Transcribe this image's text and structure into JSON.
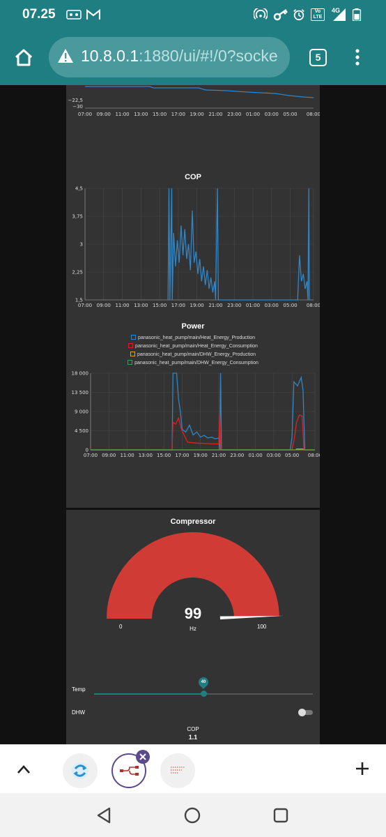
{
  "status": {
    "time": "07.25",
    "network": "4G",
    "lte_badge": "Vo LTE"
  },
  "browser": {
    "url_host": "10.8.0.1",
    "url_rest": ":1880/ui/#!/0?socke",
    "tab_count": "5"
  },
  "top_chart": {
    "y_ticks": [
      "−22,5",
      "−30"
    ],
    "x_ticks": [
      "07:00",
      "09:00",
      "11:00",
      "13:00",
      "15:00",
      "17:00",
      "19:00",
      "21:00",
      "23:00",
      "01:00",
      "03:00",
      "05:00",
      "08:00"
    ]
  },
  "chart_data": [
    {
      "type": "line",
      "title": "COP",
      "x_ticks": [
        "07:00",
        "09:00",
        "11:00",
        "13:00",
        "15:00",
        "17:00",
        "19:00",
        "21:00",
        "23:00",
        "01:00",
        "03:00",
        "05:00",
        "08:00"
      ],
      "y_ticks": [
        "4,5",
        "3,75",
        "3",
        "2,25",
        "1,5"
      ],
      "ylim": [
        1.5,
        4.5
      ],
      "series": [
        {
          "color": "#2f86c8",
          "points": [
            [
              8.9,
              1.5
            ],
            [
              9.0,
              4.5
            ],
            [
              9.1,
              1.5
            ],
            [
              9.3,
              4.5
            ],
            [
              9.35,
              1.5
            ],
            [
              9.5,
              3.3
            ],
            [
              9.7,
              2.4
            ],
            [
              9.9,
              3.1
            ],
            [
              10.1,
              2.5
            ],
            [
              10.3,
              3.5
            ],
            [
              10.5,
              2.7
            ],
            [
              10.7,
              3.4
            ],
            [
              10.9,
              2.6
            ],
            [
              11.1,
              3.0
            ],
            [
              11.3,
              2.3
            ],
            [
              11.5,
              3.9
            ],
            [
              11.7,
              2.5
            ],
            [
              11.9,
              2.8
            ],
            [
              12.1,
              2.2
            ],
            [
              12.3,
              2.6
            ],
            [
              12.5,
              2.0
            ],
            [
              12.7,
              2.4
            ],
            [
              12.9,
              1.9
            ],
            [
              13.1,
              2.3
            ],
            [
              13.3,
              1.8
            ],
            [
              13.5,
              2.1
            ],
            [
              13.7,
              1.7
            ],
            [
              13.9,
              2.0
            ],
            [
              14.0,
              1.5
            ],
            [
              14.2,
              4.5
            ],
            [
              14.3,
              1.5
            ],
            [
              22.8,
              1.5
            ],
            [
              23.0,
              2.7
            ],
            [
              23.2,
              2.0
            ],
            [
              23.4,
              2.2
            ],
            [
              23.6,
              1.8
            ],
            [
              23.8,
              2.0
            ],
            [
              23.9,
              1.5
            ],
            [
              24.0,
              4.5
            ],
            [
              24.05,
              1.5
            ]
          ]
        }
      ]
    },
    {
      "type": "line",
      "title": "Power",
      "x_ticks": [
        "07:00",
        "09:00",
        "11:00",
        "13:00",
        "15:00",
        "17:00",
        "19:00",
        "21:00",
        "23:00",
        "01:00",
        "03:00",
        "05:00",
        "08:00"
      ],
      "y_ticks": [
        "18 000",
        "13 500",
        "9 000",
        "4 500",
        "0"
      ],
      "ylim": [
        0,
        18000
      ],
      "legend": [
        "panasonic_heat_pump/main/Heat_Energy_Production",
        "panasonic_heat_pump/main/Heat_Energy_Consumption",
        "panasonic_heat_pump/main/DHW_Energy_Production",
        "panasonic_heat_pump/main/DHW_Energy_Consumption"
      ],
      "series": [
        {
          "name": "panasonic_heat_pump/main/Heat_Energy_Production",
          "color": "#2f86c8",
          "points": [
            [
              0,
              0
            ],
            [
              8.9,
              0
            ],
            [
              9.0,
              18000
            ],
            [
              9.4,
              18000
            ],
            [
              9.6,
              12000
            ],
            [
              9.8,
              9000
            ],
            [
              10.0,
              4800
            ],
            [
              10.4,
              4200
            ],
            [
              10.8,
              5800
            ],
            [
              11.2,
              3500
            ],
            [
              11.6,
              4200
            ],
            [
              12.0,
              3000
            ],
            [
              12.4,
              3400
            ],
            [
              12.8,
              2800
            ],
            [
              13.2,
              3000
            ],
            [
              13.6,
              2600
            ],
            [
              14.0,
              2800
            ],
            [
              14.1,
              0
            ],
            [
              14.2,
              18000
            ],
            [
              14.3,
              0
            ],
            [
              21.8,
              0
            ],
            [
              22.0,
              3000
            ],
            [
              22.2,
              16000
            ],
            [
              22.6,
              15000
            ],
            [
              23.0,
              17000
            ],
            [
              23.2,
              14000
            ],
            [
              23.4,
              0
            ],
            [
              24.5,
              0
            ]
          ]
        },
        {
          "name": "panasonic_heat_pump/main/Heat_Energy_Consumption",
          "color": "#e02020",
          "points": [
            [
              0,
              0
            ],
            [
              8.9,
              0
            ],
            [
              9.0,
              6500
            ],
            [
              9.3,
              6000
            ],
            [
              9.6,
              7500
            ],
            [
              9.9,
              5000
            ],
            [
              10.2,
              3500
            ],
            [
              10.6,
              1800
            ],
            [
              11.5,
              1600
            ],
            [
              12.5,
              1500
            ],
            [
              13.5,
              1400
            ],
            [
              14.0,
              1400
            ],
            [
              14.1,
              8500
            ],
            [
              14.2,
              0
            ],
            [
              22.0,
              0
            ],
            [
              22.2,
              2000
            ],
            [
              22.5,
              6500
            ],
            [
              22.8,
              8200
            ],
            [
              23.1,
              8000
            ],
            [
              23.3,
              0
            ],
            [
              24.5,
              0
            ]
          ]
        },
        {
          "name": "panasonic_heat_pump/main/DHW_Energy_Production",
          "color": "#f0a020",
          "points": [
            [
              0,
              0
            ],
            [
              22.4,
              0
            ],
            [
              22.5,
              200
            ],
            [
              23.2,
              200
            ],
            [
              23.3,
              0
            ],
            [
              24.5,
              0
            ]
          ]
        },
        {
          "name": "panasonic_heat_pump/main/DHW_Energy_Consumption",
          "color": "#3aa040",
          "points": [
            [
              0,
              0
            ],
            [
              24.5,
              0
            ]
          ]
        }
      ]
    }
  ],
  "compressor": {
    "title": "Compressor",
    "value": "99",
    "value_num": 99,
    "unit": "Hz",
    "min": "0",
    "max": "100",
    "min_num": 0,
    "max_num": 100,
    "color": "#d13b35"
  },
  "temp_slider": {
    "label": "Temp",
    "value": "40",
    "value_num": 40,
    "min_num": 0,
    "max_num": 80
  },
  "dhw_switch": {
    "label": "DHW",
    "state": "off"
  },
  "cop_text": {
    "label": "COP",
    "value": "1.1"
  },
  "colors": {
    "header": "#1f7e82",
    "card": "#333333",
    "accent": "#1f7e82",
    "gauge": "#d13b35"
  }
}
